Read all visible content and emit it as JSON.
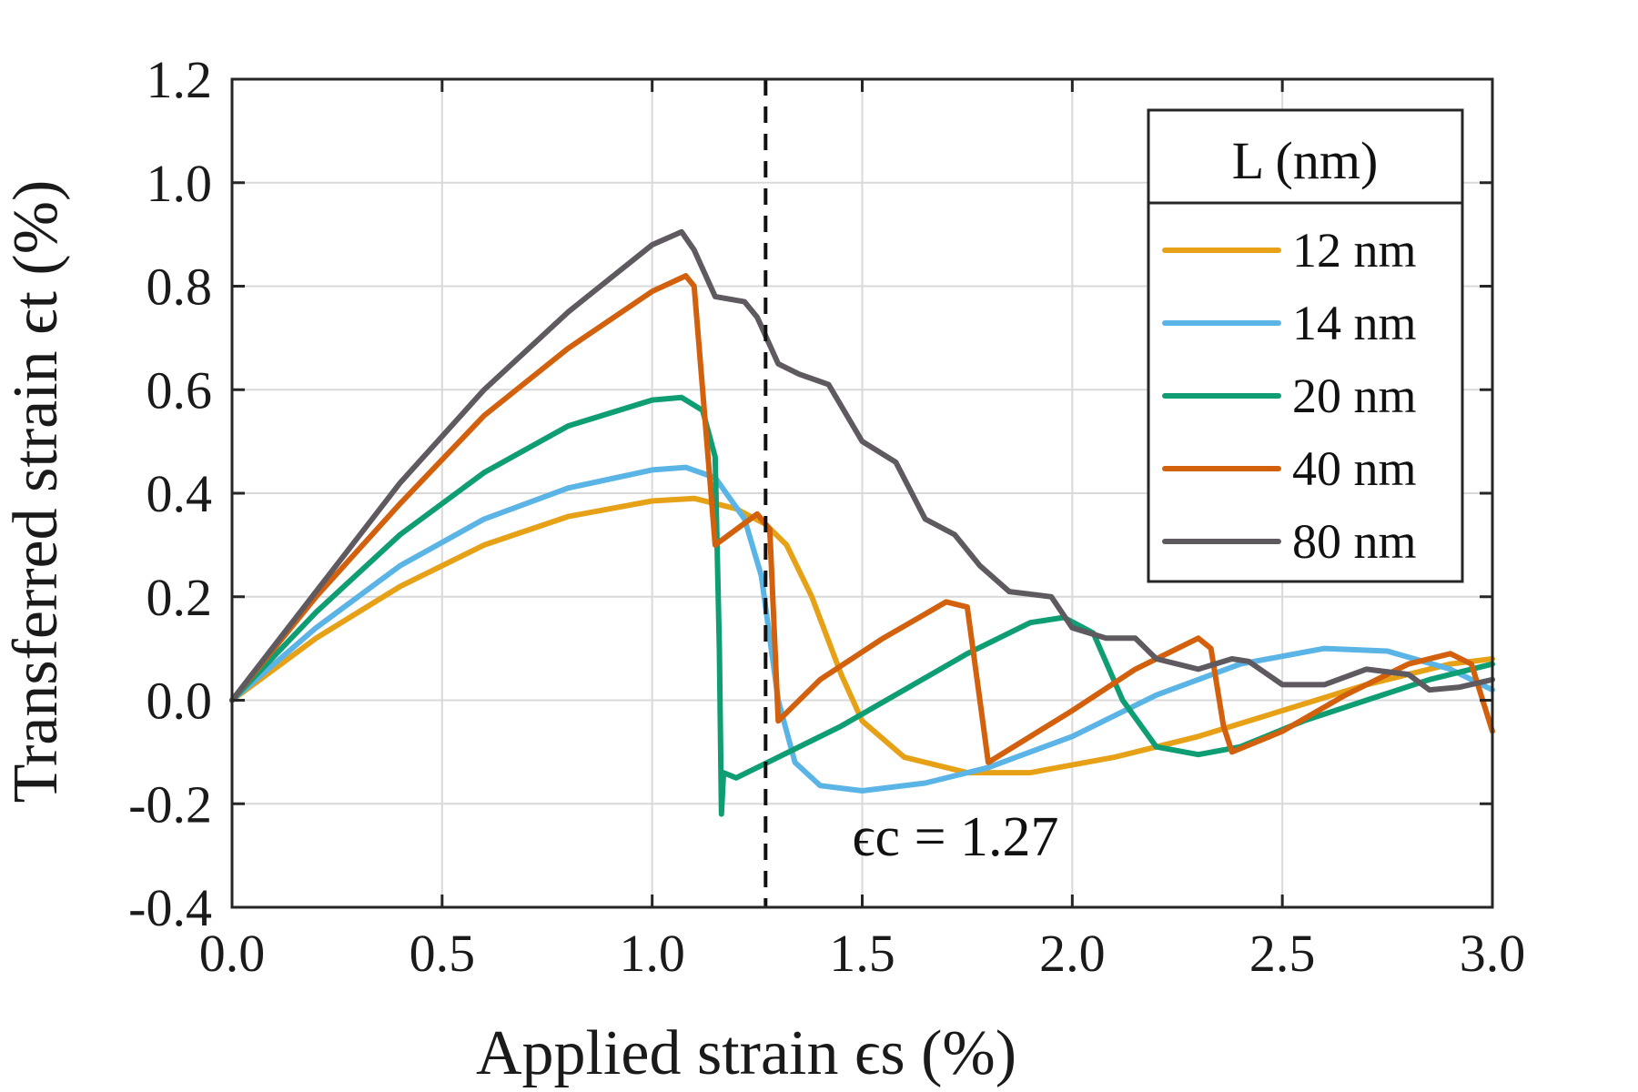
{
  "chart_data": {
    "type": "line",
    "xlabel": "Applied strain ϵs (%)",
    "ylabel": "Transferred strain ϵt (%)",
    "xlim": [
      0,
      3.0
    ],
    "ylim": [
      -0.4,
      1.2
    ],
    "xticks": [
      "0.0",
      "0.5",
      "1.0",
      "1.5",
      "2.0",
      "2.5",
      "3.0"
    ],
    "yticks": [
      "-0.4",
      "-0.2",
      "0.0",
      "0.2",
      "0.4",
      "0.6",
      "0.8",
      "1.0",
      "1.2"
    ],
    "grid": true,
    "legend": {
      "title": "L (nm)",
      "placement": "top-right"
    },
    "annotation": {
      "text": "ϵc = 1.27",
      "x_line": 1.27
    },
    "series": [
      {
        "name": "12 nm",
        "color": "#E6A117",
        "points": [
          [
            0,
            0
          ],
          [
            0.2,
            0.12
          ],
          [
            0.4,
            0.22
          ],
          [
            0.6,
            0.3
          ],
          [
            0.8,
            0.355
          ],
          [
            1.0,
            0.385
          ],
          [
            1.1,
            0.39
          ],
          [
            1.2,
            0.37
          ],
          [
            1.27,
            0.34
          ],
          [
            1.32,
            0.3
          ],
          [
            1.38,
            0.2
          ],
          [
            1.45,
            0.05
          ],
          [
            1.5,
            -0.04
          ],
          [
            1.6,
            -0.11
          ],
          [
            1.75,
            -0.14
          ],
          [
            1.9,
            -0.14
          ],
          [
            2.1,
            -0.11
          ],
          [
            2.3,
            -0.07
          ],
          [
            2.5,
            -0.02
          ],
          [
            2.7,
            0.03
          ],
          [
            2.9,
            0.07
          ],
          [
            3.0,
            0.08
          ]
        ]
      },
      {
        "name": "14 nm",
        "color": "#5AB4E5",
        "points": [
          [
            0,
            0
          ],
          [
            0.2,
            0.14
          ],
          [
            0.4,
            0.26
          ],
          [
            0.6,
            0.35
          ],
          [
            0.8,
            0.41
          ],
          [
            1.0,
            0.445
          ],
          [
            1.08,
            0.45
          ],
          [
            1.15,
            0.43
          ],
          [
            1.22,
            0.35
          ],
          [
            1.26,
            0.24
          ],
          [
            1.3,
            0.0
          ],
          [
            1.34,
            -0.12
          ],
          [
            1.4,
            -0.165
          ],
          [
            1.5,
            -0.175
          ],
          [
            1.65,
            -0.16
          ],
          [
            1.8,
            -0.13
          ],
          [
            2.0,
            -0.07
          ],
          [
            2.2,
            0.01
          ],
          [
            2.4,
            0.07
          ],
          [
            2.6,
            0.1
          ],
          [
            2.75,
            0.095
          ],
          [
            2.9,
            0.06
          ],
          [
            3.0,
            0.02
          ]
        ]
      },
      {
        "name": "20 nm",
        "color": "#0F9E73",
        "points": [
          [
            0,
            0
          ],
          [
            0.2,
            0.17
          ],
          [
            0.4,
            0.32
          ],
          [
            0.6,
            0.44
          ],
          [
            0.8,
            0.53
          ],
          [
            1.0,
            0.58
          ],
          [
            1.07,
            0.585
          ],
          [
            1.12,
            0.56
          ],
          [
            1.15,
            0.47
          ],
          [
            1.16,
            0.1
          ],
          [
            1.165,
            -0.22
          ],
          [
            1.17,
            -0.14
          ],
          [
            1.2,
            -0.15
          ],
          [
            1.3,
            -0.11
          ],
          [
            1.45,
            -0.05
          ],
          [
            1.6,
            0.02
          ],
          [
            1.75,
            0.09
          ],
          [
            1.9,
            0.15
          ],
          [
            1.98,
            0.16
          ],
          [
            2.05,
            0.13
          ],
          [
            2.12,
            0.0
          ],
          [
            2.2,
            -0.09
          ],
          [
            2.3,
            -0.105
          ],
          [
            2.4,
            -0.09
          ],
          [
            2.55,
            -0.04
          ],
          [
            2.7,
            0.0
          ],
          [
            2.85,
            0.04
          ],
          [
            3.0,
            0.07
          ]
        ]
      },
      {
        "name": "40 nm",
        "color": "#D2600C",
        "points": [
          [
            0,
            0
          ],
          [
            0.2,
            0.2
          ],
          [
            0.4,
            0.38
          ],
          [
            0.6,
            0.55
          ],
          [
            0.8,
            0.68
          ],
          [
            1.0,
            0.79
          ],
          [
            1.08,
            0.82
          ],
          [
            1.1,
            0.8
          ],
          [
            1.12,
            0.6
          ],
          [
            1.15,
            0.3
          ],
          [
            1.2,
            0.33
          ],
          [
            1.25,
            0.36
          ],
          [
            1.28,
            0.33
          ],
          [
            1.3,
            -0.04
          ],
          [
            1.4,
            0.04
          ],
          [
            1.55,
            0.12
          ],
          [
            1.7,
            0.19
          ],
          [
            1.75,
            0.18
          ],
          [
            1.78,
            0.0
          ],
          [
            1.8,
            -0.12
          ],
          [
            1.9,
            -0.07
          ],
          [
            2.0,
            -0.02
          ],
          [
            2.15,
            0.06
          ],
          [
            2.3,
            0.12
          ],
          [
            2.33,
            0.1
          ],
          [
            2.36,
            -0.05
          ],
          [
            2.38,
            -0.1
          ],
          [
            2.5,
            -0.06
          ],
          [
            2.65,
            0.01
          ],
          [
            2.8,
            0.07
          ],
          [
            2.9,
            0.09
          ],
          [
            2.95,
            0.07
          ],
          [
            3.0,
            -0.06
          ]
        ]
      },
      {
        "name": "80 nm",
        "color": "#5E5A5F",
        "points": [
          [
            0,
            0
          ],
          [
            0.2,
            0.21
          ],
          [
            0.4,
            0.42
          ],
          [
            0.6,
            0.6
          ],
          [
            0.8,
            0.75
          ],
          [
            1.0,
            0.88
          ],
          [
            1.07,
            0.905
          ],
          [
            1.1,
            0.87
          ],
          [
            1.15,
            0.78
          ],
          [
            1.22,
            0.77
          ],
          [
            1.25,
            0.74
          ],
          [
            1.3,
            0.65
          ],
          [
            1.35,
            0.63
          ],
          [
            1.42,
            0.61
          ],
          [
            1.5,
            0.5
          ],
          [
            1.58,
            0.46
          ],
          [
            1.65,
            0.35
          ],
          [
            1.72,
            0.32
          ],
          [
            1.78,
            0.26
          ],
          [
            1.85,
            0.21
          ],
          [
            1.95,
            0.2
          ],
          [
            2.0,
            0.14
          ],
          [
            2.08,
            0.12
          ],
          [
            2.15,
            0.12
          ],
          [
            2.2,
            0.08
          ],
          [
            2.3,
            0.06
          ],
          [
            2.38,
            0.08
          ],
          [
            2.42,
            0.075
          ],
          [
            2.5,
            0.03
          ],
          [
            2.6,
            0.03
          ],
          [
            2.7,
            0.06
          ],
          [
            2.8,
            0.05
          ],
          [
            2.85,
            0.02
          ],
          [
            2.92,
            0.025
          ],
          [
            3.0,
            0.04
          ]
        ]
      }
    ]
  }
}
